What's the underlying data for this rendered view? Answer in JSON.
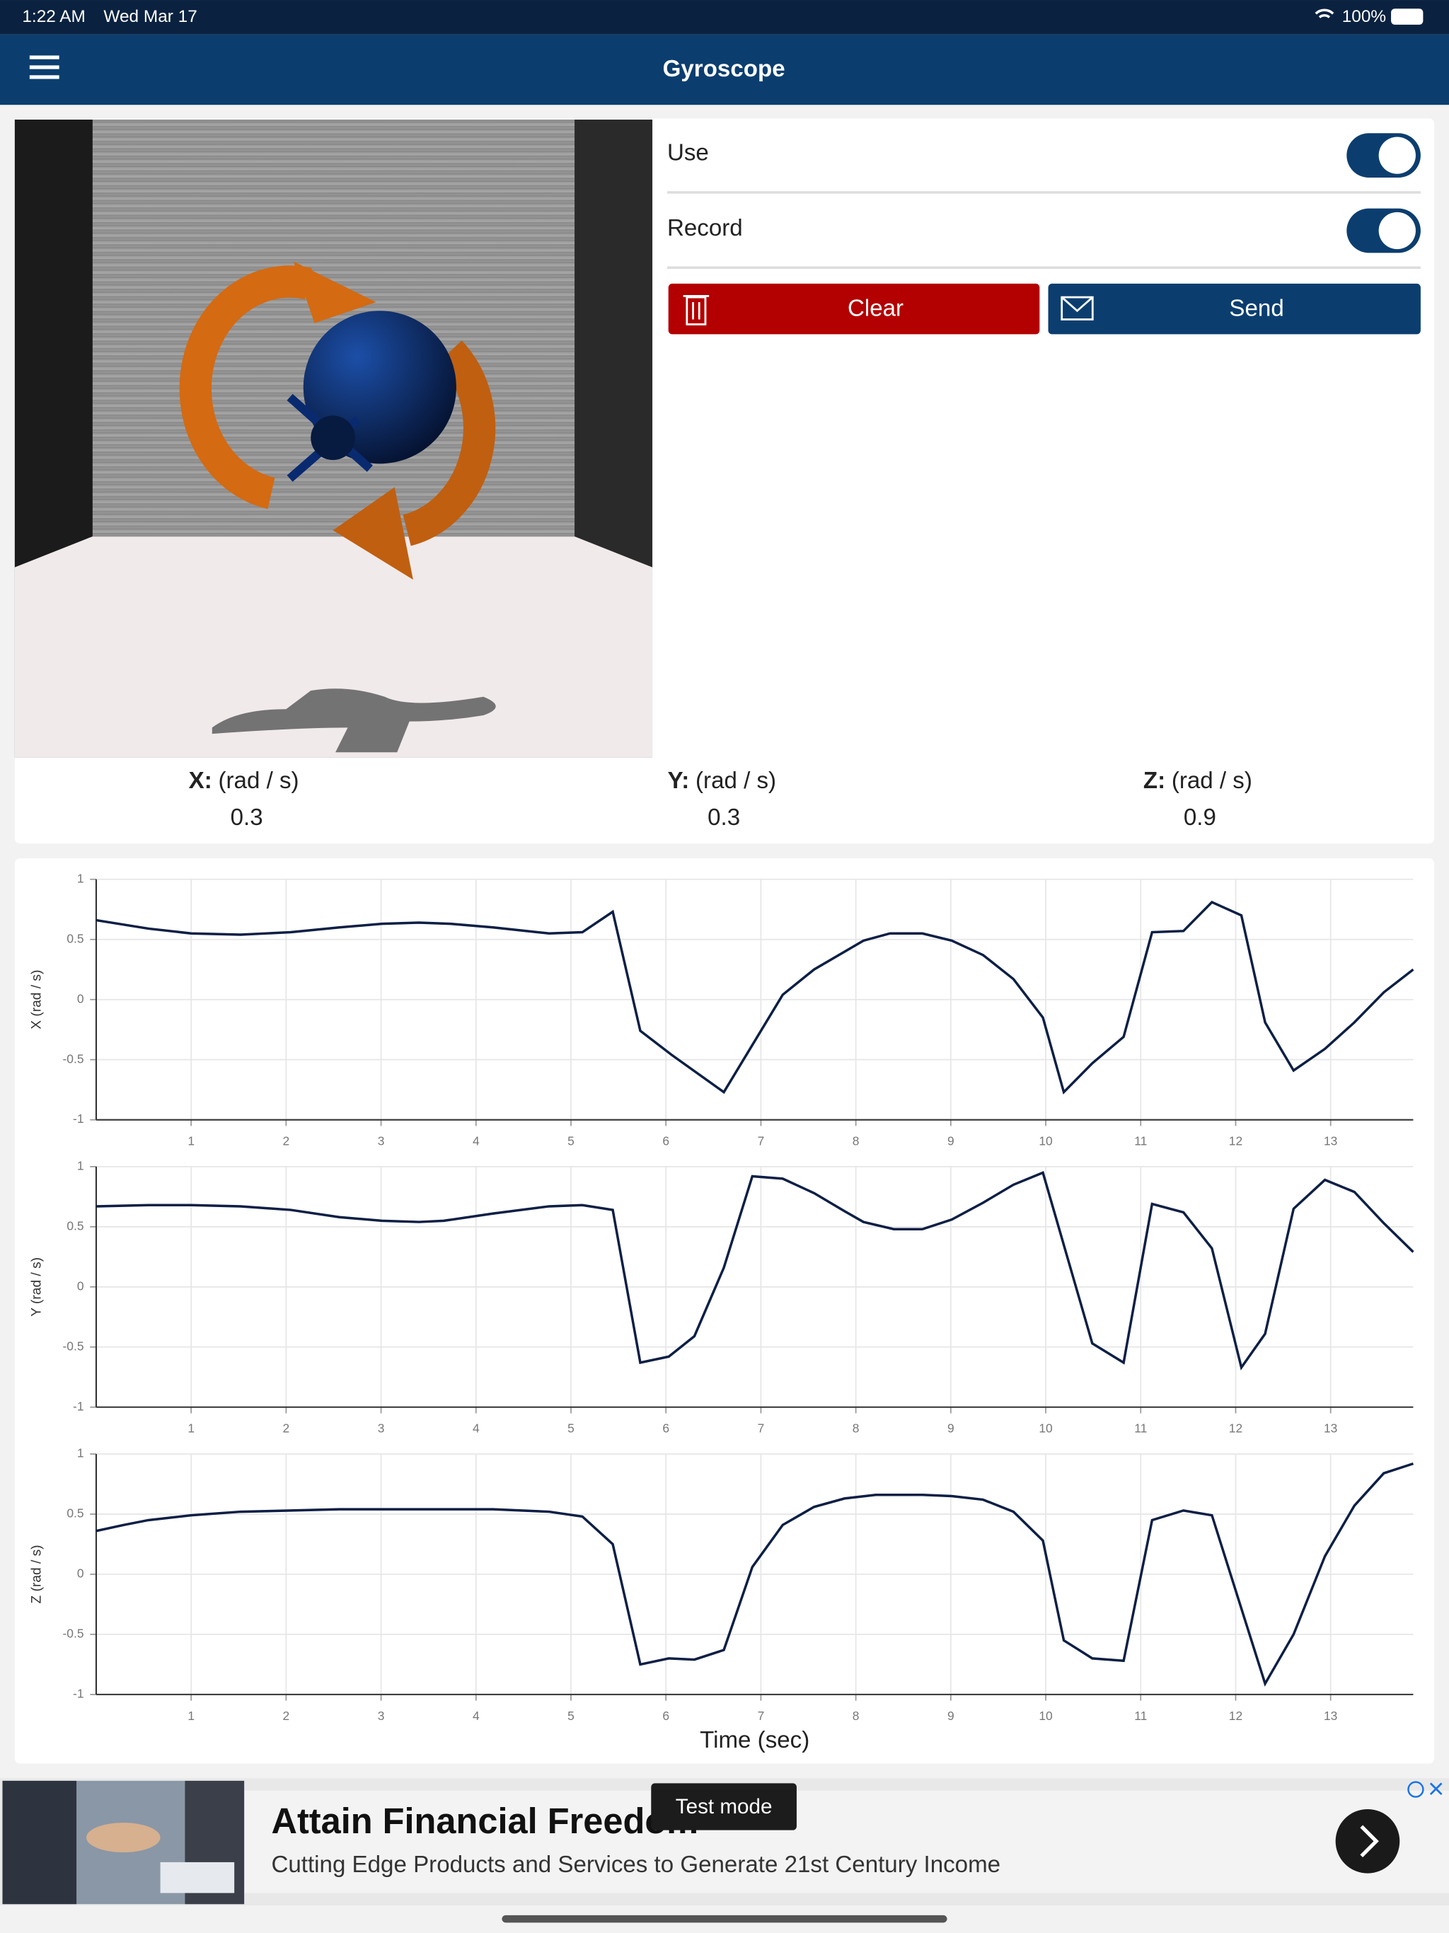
{
  "status_bar": {
    "time": "1:22 AM",
    "date": "Wed Mar 17",
    "battery": "100%"
  },
  "header": {
    "title": "Gyroscope"
  },
  "controls": {
    "use": "Use",
    "record": "Record",
    "clear": "Clear",
    "send": "Send"
  },
  "readouts": [
    {
      "axis": "X:",
      "unit": "(rad / s)",
      "value": "0.3"
    },
    {
      "axis": "Y:",
      "unit": "(rad / s)",
      "value": "0.3"
    },
    {
      "axis": "Z:",
      "unit": "(rad / s)",
      "value": "0.9"
    }
  ],
  "ad": {
    "title": "Attain Financial Freedom",
    "subtitle": "Cutting Edge Products and Services to Generate 21st Century Income",
    "badge": "Test mode"
  },
  "chart_data": [
    {
      "type": "line",
      "ylabel": "X (rad / s)",
      "color": "#0d1f45",
      "grid": true,
      "xlim": [
        0,
        13.87
      ],
      "ylim": [
        -1,
        1
      ],
      "yticks": [
        1,
        0.5,
        0,
        -0.5,
        -1
      ],
      "xticks": [
        1,
        2,
        3,
        4,
        5,
        6,
        7,
        8,
        9,
        10,
        11,
        12,
        13
      ],
      "x": [
        0,
        0.55,
        1.0,
        1.52,
        2.05,
        2.56,
        3.01,
        3.4,
        3.73,
        4.18,
        4.77,
        5.12,
        5.44,
        5.73,
        6.06,
        6.61,
        7.23,
        7.56,
        8.08,
        8.36,
        8.7,
        9.01,
        9.34,
        9.66,
        9.97,
        10.19,
        10.49,
        10.82,
        11.12,
        11.45,
        11.75,
        12.06,
        12.31,
        12.61,
        12.94,
        13.25,
        13.56,
        13.87
      ],
      "values": [
        0.66,
        0.59,
        0.55,
        0.54,
        0.56,
        0.6,
        0.63,
        0.64,
        0.63,
        0.6,
        0.55,
        0.56,
        0.73,
        -0.26,
        -0.46,
        -0.77,
        0.04,
        0.25,
        0.49,
        0.55,
        0.55,
        0.49,
        0.37,
        0.17,
        -0.15,
        -0.77,
        -0.53,
        -0.31,
        0.56,
        0.57,
        0.81,
        0.7,
        -0.19,
        -0.59,
        -0.41,
        -0.19,
        0.06,
        0.25
      ]
    },
    {
      "type": "line",
      "ylabel": "Y (rad / s)",
      "color": "#0d1f45",
      "grid": true,
      "xlim": [
        0,
        13.87
      ],
      "ylim": [
        -1,
        1
      ],
      "yticks": [
        1,
        0.5,
        0,
        -0.5,
        -1
      ],
      "xticks": [
        1,
        2,
        3,
        4,
        5,
        6,
        7,
        8,
        9,
        10,
        11,
        12,
        13
      ],
      "x": [
        0,
        0.55,
        1.0,
        1.52,
        2.05,
        2.56,
        3.01,
        3.4,
        3.66,
        4.18,
        4.77,
        5.12,
        5.44,
        5.73,
        6.03,
        6.3,
        6.61,
        6.91,
        7.23,
        7.56,
        7.88,
        8.08,
        8.4,
        8.7,
        9.01,
        9.34,
        9.66,
        9.97,
        10.49,
        10.82,
        11.12,
        11.45,
        11.75,
        12.06,
        12.31,
        12.61,
        12.94,
        13.25,
        13.56,
        13.87
      ],
      "values": [
        0.67,
        0.68,
        0.68,
        0.67,
        0.64,
        0.58,
        0.55,
        0.54,
        0.55,
        0.61,
        0.67,
        0.68,
        0.64,
        -0.63,
        -0.58,
        -0.41,
        0.16,
        0.92,
        0.9,
        0.78,
        0.63,
        0.54,
        0.48,
        0.48,
        0.56,
        0.7,
        0.85,
        0.95,
        -0.47,
        -0.63,
        0.69,
        0.62,
        0.32,
        -0.67,
        -0.39,
        0.65,
        0.89,
        0.79,
        0.53,
        0.29
      ]
    },
    {
      "type": "line",
      "ylabel": "Z (rad / s)",
      "xlabel": "Time (sec)",
      "color": "#0d1f45",
      "grid": true,
      "xlim": [
        0,
        13.87
      ],
      "ylim": [
        -1,
        1
      ],
      "yticks": [
        1,
        0.5,
        0,
        -0.5,
        -1
      ],
      "xticks": [
        1,
        2,
        3,
        4,
        5,
        6,
        7,
        8,
        9,
        10,
        11,
        12,
        13
      ],
      "x": [
        0,
        0.29,
        0.55,
        1.0,
        1.52,
        2.05,
        2.56,
        3.01,
        4.18,
        4.77,
        5.12,
        5.44,
        5.73,
        6.03,
        6.3,
        6.61,
        6.91,
        7.23,
        7.56,
        7.88,
        8.21,
        8.7,
        9.01,
        9.34,
        9.66,
        9.97,
        10.19,
        10.49,
        10.82,
        11.12,
        11.45,
        11.75,
        12.31,
        12.61,
        12.94,
        13.25,
        13.56,
        13.87
      ],
      "values": [
        0.36,
        0.41,
        0.45,
        0.49,
        0.52,
        0.53,
        0.54,
        0.54,
        0.54,
        0.52,
        0.48,
        0.25,
        -0.75,
        -0.7,
        -0.71,
        -0.63,
        0.06,
        0.41,
        0.56,
        0.63,
        0.66,
        0.66,
        0.65,
        0.62,
        0.52,
        0.28,
        -0.55,
        -0.7,
        -0.72,
        0.45,
        0.53,
        0.49,
        -0.91,
        -0.5,
        0.15,
        0.57,
        0.84,
        0.92
      ]
    }
  ]
}
